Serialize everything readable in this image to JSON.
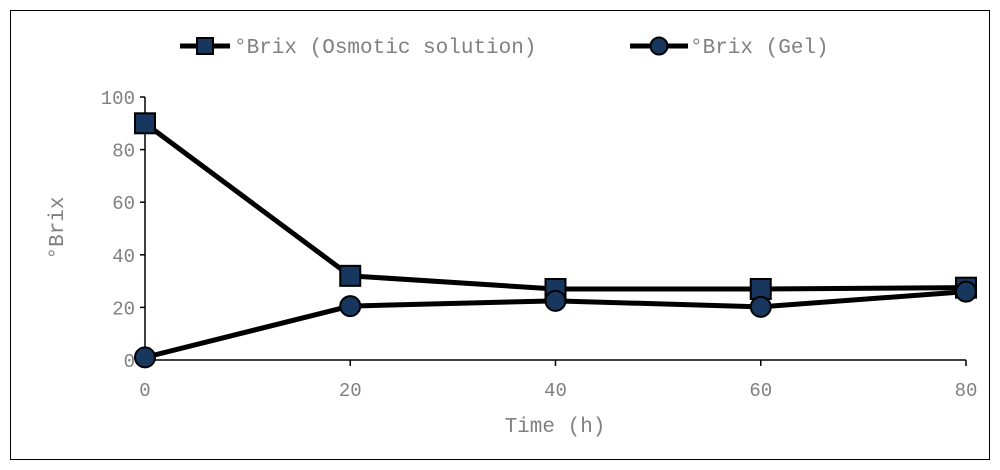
{
  "chart_data": {
    "type": "line",
    "title": "",
    "xlabel": "Time (h)",
    "ylabel": "°Brix",
    "x": [
      0,
      20,
      40,
      60,
      80
    ],
    "xlim": [
      0,
      80
    ],
    "ylim": [
      0,
      100
    ],
    "x_ticks": [
      "0",
      "20",
      "40",
      "60",
      "80"
    ],
    "y_ticks": [
      "0",
      "20",
      "40",
      "60",
      "80",
      "100"
    ],
    "grid": false,
    "legend_position": "top",
    "series": [
      {
        "name": "°Brix (Osmotic solution)",
        "marker": "square",
        "values": [
          90,
          32,
          27,
          27,
          27.5
        ]
      },
      {
        "name": "°Brix (Gel)",
        "marker": "circle",
        "values": [
          1,
          20.5,
          22.5,
          20.2,
          26
        ]
      }
    ],
    "colors": {
      "line": "#000000",
      "marker_fill": "#17375e",
      "axis": "#000000",
      "text": "#808080"
    }
  }
}
